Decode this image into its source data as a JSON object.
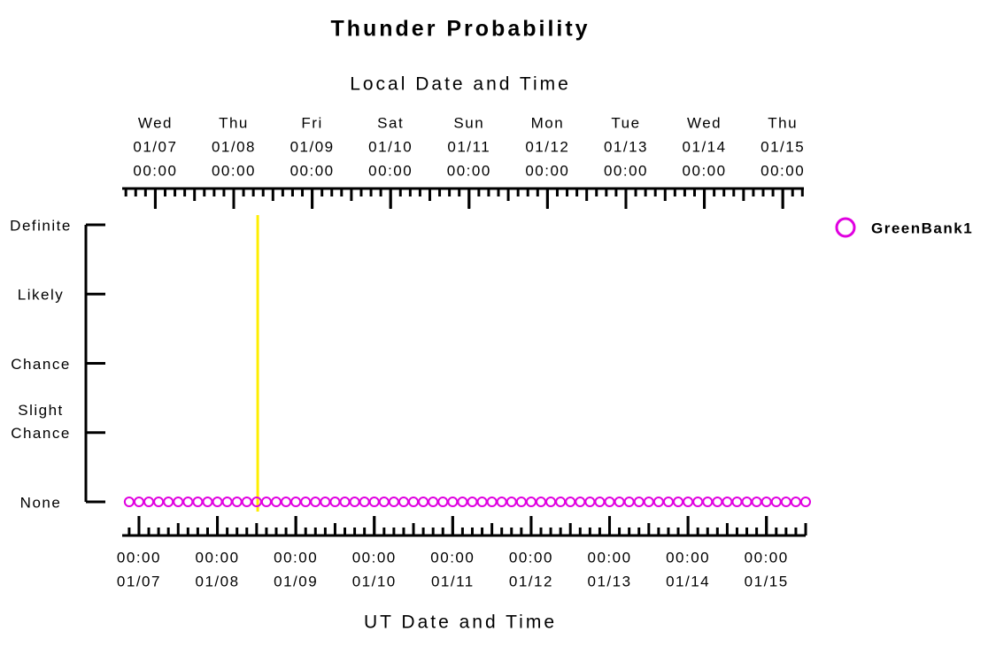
{
  "chart_data": {
    "type": "scatter",
    "title": "Thunder Probability",
    "x2_title": "Local Date and Time",
    "x_title": "UT Date and Time",
    "x": [
      "01/06 21:00",
      "01/07 00:00",
      "01/07 03:00",
      "01/07 06:00",
      "01/07 09:00",
      "01/07 12:00",
      "01/07 15:00",
      "01/07 18:00",
      "01/07 21:00",
      "01/08 00:00",
      "01/08 03:00",
      "01/08 06:00",
      "01/08 09:00",
      "01/08 12:00",
      "01/08 15:00",
      "01/08 18:00",
      "01/08 21:00",
      "01/09 00:00",
      "01/09 03:00",
      "01/09 06:00",
      "01/09 09:00",
      "01/09 12:00",
      "01/09 15:00",
      "01/09 18:00",
      "01/09 21:00",
      "01/10 00:00",
      "01/10 03:00",
      "01/10 06:00",
      "01/10 09:00",
      "01/10 12:00",
      "01/10 15:00",
      "01/10 18:00",
      "01/10 21:00",
      "01/11 00:00",
      "01/11 03:00",
      "01/11 06:00",
      "01/11 09:00",
      "01/11 12:00",
      "01/11 15:00",
      "01/11 18:00",
      "01/11 21:00",
      "01/12 00:00",
      "01/12 03:00",
      "01/12 06:00",
      "01/12 09:00",
      "01/12 12:00",
      "01/12 15:00",
      "01/12 18:00",
      "01/12 21:00",
      "01/13 00:00",
      "01/13 03:00",
      "01/13 06:00",
      "01/13 09:00",
      "01/13 12:00",
      "01/13 15:00",
      "01/13 18:00",
      "01/13 21:00",
      "01/14 00:00",
      "01/14 03:00",
      "01/14 06:00",
      "01/14 09:00",
      "01/14 12:00",
      "01/14 15:00",
      "01/14 18:00",
      "01/14 21:00",
      "01/15 00:00",
      "01/15 03:00",
      "01/15 06:00",
      "01/15 09:00",
      "01/15 12:00"
    ],
    "series": [
      {
        "name": "GreenBank1",
        "color": "#e000e0",
        "values": [
          0,
          0,
          0,
          0,
          0,
          0,
          0,
          0,
          0,
          0,
          0,
          0,
          0,
          0,
          0,
          0,
          0,
          0,
          0,
          0,
          0,
          0,
          0,
          0,
          0,
          0,
          0,
          0,
          0,
          0,
          0,
          0,
          0,
          0,
          0,
          0,
          0,
          0,
          0,
          0,
          0,
          0,
          0,
          0,
          0,
          0,
          0,
          0,
          0,
          0,
          0,
          0,
          0,
          0,
          0,
          0,
          0,
          0,
          0,
          0,
          0,
          0,
          0,
          0,
          0,
          0,
          0,
          0,
          0,
          0
        ]
      }
    ],
    "xlim": [
      "01/06 19:00",
      "01/15 12:00"
    ],
    "xticks": [
      {
        "value": "01/07 00:00",
        "label": [
          "00:00",
          "01/07"
        ]
      },
      {
        "value": "01/08 00:00",
        "label": [
          "00:00",
          "01/08"
        ]
      },
      {
        "value": "01/09 00:00",
        "label": [
          "00:00",
          "01/09"
        ]
      },
      {
        "value": "01/10 00:00",
        "label": [
          "00:00",
          "01/10"
        ]
      },
      {
        "value": "01/11 00:00",
        "label": [
          "00:00",
          "01/11"
        ]
      },
      {
        "value": "01/12 00:00",
        "label": [
          "00:00",
          "01/12"
        ]
      },
      {
        "value": "01/13 00:00",
        "label": [
          "00:00",
          "01/13"
        ]
      },
      {
        "value": "01/14 00:00",
        "label": [
          "00:00",
          "01/14"
        ]
      },
      {
        "value": "01/15 00:00",
        "label": [
          "00:00",
          "01/15"
        ]
      }
    ],
    "x2ticks": [
      {
        "value": "01/07 05:00",
        "label": [
          "Wed",
          "01/07",
          "00:00"
        ]
      },
      {
        "value": "01/08 05:00",
        "label": [
          "Thu",
          "01/08",
          "00:00"
        ]
      },
      {
        "value": "01/09 05:00",
        "label": [
          "Fri",
          "01/09",
          "00:00"
        ]
      },
      {
        "value": "01/10 05:00",
        "label": [
          "Sat",
          "01/10",
          "00:00"
        ]
      },
      {
        "value": "01/11 05:00",
        "label": [
          "Sun",
          "01/11",
          "00:00"
        ]
      },
      {
        "value": "01/12 05:00",
        "label": [
          "Mon",
          "01/12",
          "00:00"
        ]
      },
      {
        "value": "01/13 05:00",
        "label": [
          "Tue",
          "01/13",
          "00:00"
        ]
      },
      {
        "value": "01/14 05:00",
        "label": [
          "Wed",
          "01/14",
          "00:00"
        ]
      },
      {
        "value": "01/15 05:00",
        "label": [
          "Thu",
          "01/15",
          "00:00"
        ]
      }
    ],
    "minor_tick_step_hours": 3,
    "ylim": [
      0,
      4
    ],
    "yticks": [
      {
        "value": 0,
        "label": [
          "None"
        ]
      },
      {
        "value": 1,
        "label": [
          "Slight",
          "Chance"
        ]
      },
      {
        "value": 2,
        "label": [
          "Chance"
        ]
      },
      {
        "value": 3,
        "label": [
          "Likely"
        ]
      },
      {
        "value": 4,
        "label": [
          "Definite"
        ]
      }
    ],
    "marker_x": "01/08 12:20",
    "marker_color": "#ffee00",
    "legend": "right"
  }
}
